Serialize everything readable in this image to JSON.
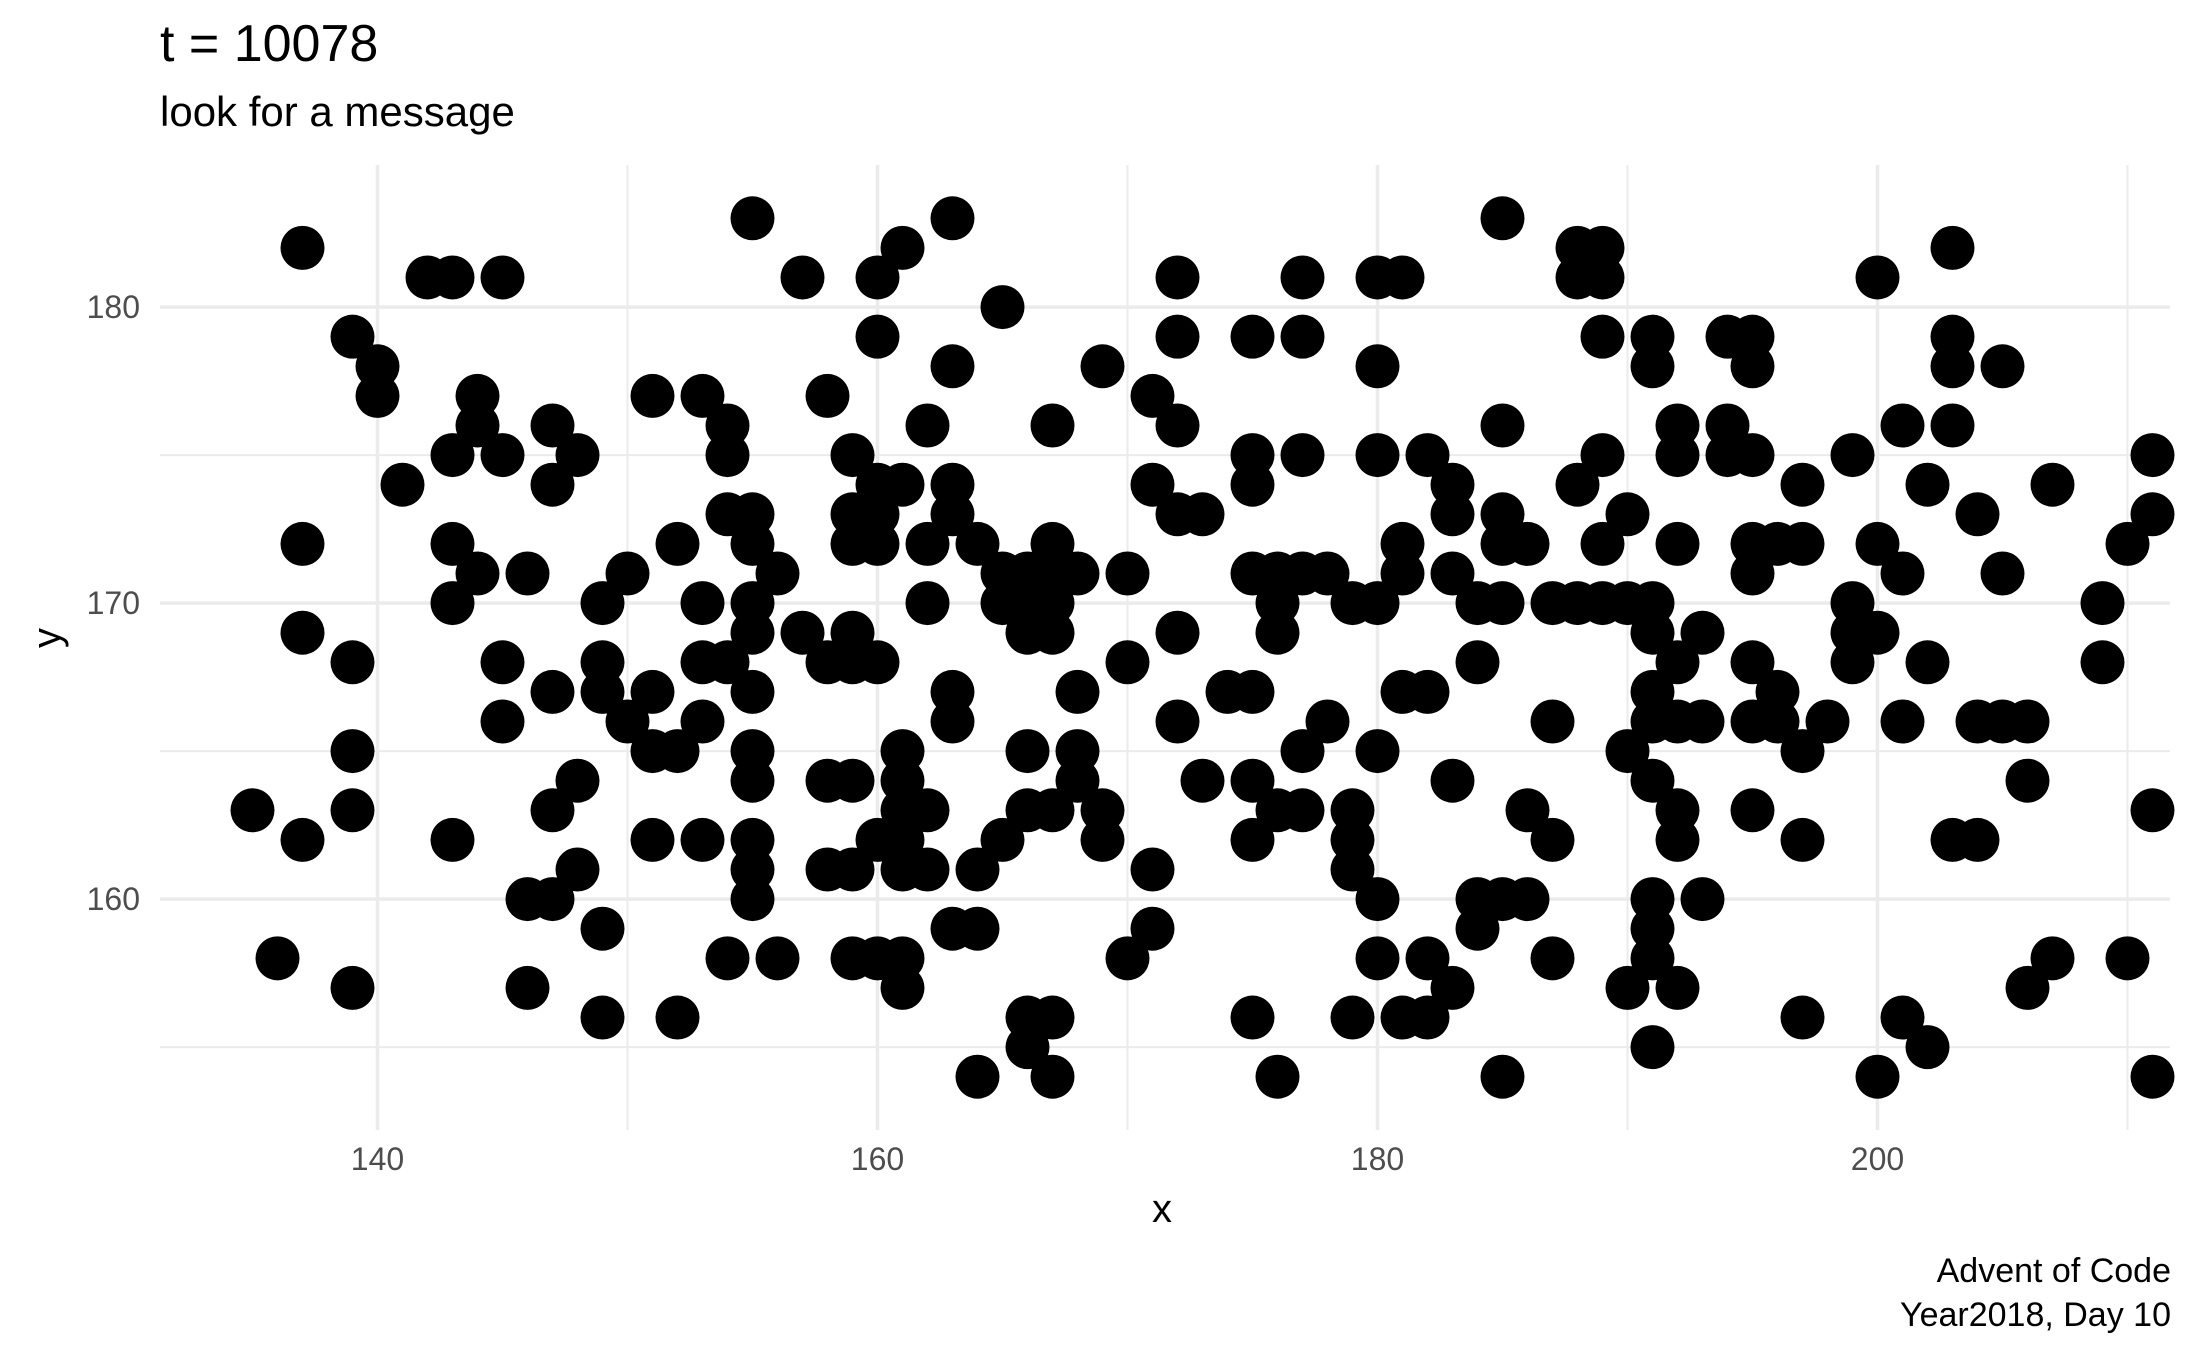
{
  "chart_data": {
    "type": "scatter",
    "title": "t =  10078",
    "subtitle": "look for a message",
    "xlabel": "x",
    "ylabel": "y",
    "caption": [
      "Advent of Code",
      "Year2018, Day 10"
    ],
    "xlim": [
      131.3,
      211.7
    ],
    "ylim": [
      152.2,
      184.8
    ],
    "x_ticks": [
      140,
      160,
      180,
      200
    ],
    "y_ticks": [
      160,
      170,
      180
    ],
    "grid": true,
    "point_color": "#000000",
    "points": [
      [
        137,
        182
      ],
      [
        142,
        181
      ],
      [
        143,
        181
      ],
      [
        145,
        181
      ],
      [
        155,
        183
      ],
      [
        157,
        181
      ],
      [
        160,
        181
      ],
      [
        161,
        182
      ],
      [
        163,
        183
      ],
      [
        165,
        180
      ],
      [
        172,
        181
      ],
      [
        177,
        181
      ],
      [
        180,
        181
      ],
      [
        181,
        181
      ],
      [
        185,
        183
      ],
      [
        188,
        182
      ],
      [
        189,
        182
      ],
      [
        188,
        181
      ],
      [
        189,
        181
      ],
      [
        200,
        181
      ],
      [
        203,
        182
      ],
      [
        139,
        179
      ],
      [
        140,
        178
      ],
      [
        140,
        177
      ],
      [
        141,
        174
      ],
      [
        144,
        177
      ],
      [
        144,
        176
      ],
      [
        143,
        175
      ],
      [
        145,
        175
      ],
      [
        147,
        176
      ],
      [
        147,
        174
      ],
      [
        148,
        175
      ],
      [
        151,
        177
      ],
      [
        153,
        177
      ],
      [
        154,
        176
      ],
      [
        154,
        175
      ],
      [
        158,
        177
      ],
      [
        159,
        175
      ],
      [
        160,
        179
      ],
      [
        160,
        174
      ],
      [
        161,
        174
      ],
      [
        162,
        176
      ],
      [
        163,
        178
      ],
      [
        163,
        174
      ],
      [
        167,
        176
      ],
      [
        169,
        178
      ],
      [
        171,
        177
      ],
      [
        171,
        174
      ],
      [
        172,
        179
      ],
      [
        172,
        176
      ],
      [
        175,
        179
      ],
      [
        175,
        175
      ],
      [
        175,
        174
      ],
      [
        177,
        179
      ],
      [
        177,
        175
      ],
      [
        180,
        178
      ],
      [
        180,
        175
      ],
      [
        182,
        175
      ],
      [
        183,
        174
      ],
      [
        185,
        176
      ],
      [
        188,
        174
      ],
      [
        189,
        179
      ],
      [
        189,
        175
      ],
      [
        191,
        179
      ],
      [
        191,
        178
      ],
      [
        192,
        176
      ],
      [
        192,
        175
      ],
      [
        194,
        179
      ],
      [
        194,
        176
      ],
      [
        194,
        175
      ],
      [
        195,
        179
      ],
      [
        195,
        178
      ],
      [
        195,
        175
      ],
      [
        197,
        174
      ],
      [
        199,
        175
      ],
      [
        201,
        176
      ],
      [
        202,
        174
      ],
      [
        203,
        179
      ],
      [
        203,
        178
      ],
      [
        203,
        176
      ],
      [
        205,
        178
      ],
      [
        207,
        174
      ],
      [
        211,
        175
      ],
      [
        137,
        172
      ],
      [
        137,
        169
      ],
      [
        139,
        168
      ],
      [
        143,
        172
      ],
      [
        143,
        170
      ],
      [
        144,
        171
      ],
      [
        145,
        168
      ],
      [
        146,
        171
      ],
      [
        149,
        170
      ],
      [
        149,
        168
      ],
      [
        150,
        171
      ],
      [
        152,
        172
      ],
      [
        153,
        170
      ],
      [
        153,
        168
      ],
      [
        154,
        168
      ],
      [
        154,
        173
      ],
      [
        155,
        173
      ],
      [
        155,
        172
      ],
      [
        155,
        170
      ],
      [
        155,
        169
      ],
      [
        156,
        171
      ],
      [
        157,
        169
      ],
      [
        158,
        168
      ],
      [
        159,
        172
      ],
      [
        159,
        173
      ],
      [
        159,
        169
      ],
      [
        159,
        168
      ],
      [
        160,
        173
      ],
      [
        160,
        172
      ],
      [
        160,
        168
      ],
      [
        162,
        172
      ],
      [
        162,
        170
      ],
      [
        163,
        173
      ],
      [
        164,
        172
      ],
      [
        165,
        171
      ],
      [
        165,
        170
      ],
      [
        166,
        171
      ],
      [
        166,
        170
      ],
      [
        166,
        169
      ],
      [
        167,
        172
      ],
      [
        167,
        171
      ],
      [
        167,
        170
      ],
      [
        167,
        169
      ],
      [
        168,
        171
      ],
      [
        170,
        171
      ],
      [
        170,
        168
      ],
      [
        172,
        173
      ],
      [
        172,
        169
      ],
      [
        173,
        173
      ],
      [
        175,
        171
      ],
      [
        176,
        171
      ],
      [
        176,
        170
      ],
      [
        176,
        169
      ],
      [
        177,
        171
      ],
      [
        178,
        171
      ],
      [
        179,
        170
      ],
      [
        180,
        170
      ],
      [
        181,
        172
      ],
      [
        181,
        171
      ],
      [
        183,
        173
      ],
      [
        183,
        171
      ],
      [
        184,
        170
      ],
      [
        184,
        168
      ],
      [
        185,
        173
      ],
      [
        185,
        172
      ],
      [
        185,
        170
      ],
      [
        186,
        172
      ],
      [
        187,
        170
      ],
      [
        188,
        170
      ],
      [
        189,
        172
      ],
      [
        189,
        170
      ],
      [
        190,
        173
      ],
      [
        190,
        170
      ],
      [
        191,
        170
      ],
      [
        191,
        169
      ],
      [
        192,
        172
      ],
      [
        192,
        168
      ],
      [
        193,
        169
      ],
      [
        195,
        172
      ],
      [
        195,
        171
      ],
      [
        195,
        168
      ],
      [
        196,
        172
      ],
      [
        197,
        172
      ],
      [
        199,
        170
      ],
      [
        199,
        169
      ],
      [
        199,
        168
      ],
      [
        200,
        172
      ],
      [
        200,
        169
      ],
      [
        201,
        171
      ],
      [
        202,
        168
      ],
      [
        204,
        173
      ],
      [
        205,
        171
      ],
      [
        209,
        170
      ],
      [
        209,
        168
      ],
      [
        210,
        172
      ],
      [
        211,
        173
      ],
      [
        135,
        163
      ],
      [
        136,
        158
      ],
      [
        137,
        162
      ],
      [
        139,
        165
      ],
      [
        139,
        163
      ],
      [
        139,
        157
      ],
      [
        143,
        162
      ],
      [
        145,
        166
      ],
      [
        146,
        160
      ],
      [
        146,
        157
      ],
      [
        147,
        167
      ],
      [
        147,
        163
      ],
      [
        147,
        160
      ],
      [
        148,
        164
      ],
      [
        148,
        161
      ],
      [
        149,
        167
      ],
      [
        149,
        159
      ],
      [
        149,
        156
      ],
      [
        150,
        166
      ],
      [
        151,
        167
      ],
      [
        151,
        165
      ],
      [
        151,
        162
      ],
      [
        152,
        165
      ],
      [
        152,
        156
      ],
      [
        153,
        166
      ],
      [
        153,
        162
      ],
      [
        154,
        158
      ],
      [
        155,
        167
      ],
      [
        155,
        165
      ],
      [
        155,
        164
      ],
      [
        155,
        162
      ],
      [
        155,
        161
      ],
      [
        155,
        160
      ],
      [
        156,
        158
      ],
      [
        158,
        164
      ],
      [
        158,
        161
      ],
      [
        159,
        164
      ],
      [
        159,
        161
      ],
      [
        159,
        158
      ],
      [
        160,
        162
      ],
      [
        160,
        158
      ],
      [
        161,
        165
      ],
      [
        161,
        164
      ],
      [
        161,
        163
      ],
      [
        161,
        162
      ],
      [
        161,
        161
      ],
      [
        161,
        158
      ],
      [
        161,
        157
      ],
      [
        162,
        163
      ],
      [
        162,
        161
      ],
      [
        163,
        167
      ],
      [
        163,
        166
      ],
      [
        163,
        159
      ],
      [
        164,
        161
      ],
      [
        164,
        159
      ],
      [
        164,
        154
      ],
      [
        165,
        162
      ],
      [
        166,
        165
      ],
      [
        166,
        163
      ],
      [
        166,
        156
      ],
      [
        166,
        155
      ],
      [
        167,
        163
      ],
      [
        167,
        156
      ],
      [
        167,
        154
      ],
      [
        168,
        167
      ],
      [
        168,
        165
      ],
      [
        168,
        164
      ],
      [
        169,
        163
      ],
      [
        169,
        162
      ],
      [
        170,
        158
      ],
      [
        171,
        161
      ],
      [
        171,
        159
      ],
      [
        172,
        166
      ],
      [
        173,
        164
      ],
      [
        174,
        167
      ],
      [
        175,
        167
      ],
      [
        175,
        164
      ],
      [
        175,
        162
      ],
      [
        175,
        156
      ],
      [
        176,
        163
      ],
      [
        176,
        154
      ],
      [
        177,
        165
      ],
      [
        177,
        163
      ],
      [
        178,
        166
      ],
      [
        179,
        163
      ],
      [
        179,
        162
      ],
      [
        179,
        161
      ],
      [
        179,
        156
      ],
      [
        180,
        165
      ],
      [
        180,
        160
      ],
      [
        180,
        158
      ],
      [
        181,
        167
      ],
      [
        181,
        156
      ],
      [
        182,
        167
      ],
      [
        182,
        158
      ],
      [
        182,
        156
      ],
      [
        183,
        164
      ],
      [
        183,
        157
      ],
      [
        184,
        160
      ],
      [
        184,
        159
      ],
      [
        185,
        160
      ],
      [
        185,
        154
      ],
      [
        186,
        163
      ],
      [
        186,
        160
      ],
      [
        187,
        166
      ],
      [
        187,
        162
      ],
      [
        187,
        158
      ],
      [
        190,
        165
      ],
      [
        190,
        157
      ],
      [
        191,
        167
      ],
      [
        191,
        166
      ],
      [
        191,
        164
      ],
      [
        191,
        160
      ],
      [
        191,
        159
      ],
      [
        191,
        158
      ],
      [
        191,
        155
      ],
      [
        192,
        166
      ],
      [
        192,
        163
      ],
      [
        192,
        162
      ],
      [
        192,
        157
      ],
      [
        193,
        166
      ],
      [
        193,
        160
      ],
      [
        195,
        166
      ],
      [
        195,
        163
      ],
      [
        196,
        167
      ],
      [
        196,
        166
      ],
      [
        197,
        165
      ],
      [
        197,
        162
      ],
      [
        197,
        156
      ],
      [
        198,
        166
      ],
      [
        200,
        154
      ],
      [
        201,
        166
      ],
      [
        201,
        156
      ],
      [
        202,
        155
      ],
      [
        203,
        162
      ],
      [
        204,
        166
      ],
      [
        204,
        162
      ],
      [
        205,
        166
      ],
      [
        206,
        166
      ],
      [
        206,
        164
      ],
      [
        206,
        157
      ],
      [
        207,
        158
      ],
      [
        210,
        158
      ],
      [
        211,
        163
      ],
      [
        211,
        154
      ]
    ]
  }
}
